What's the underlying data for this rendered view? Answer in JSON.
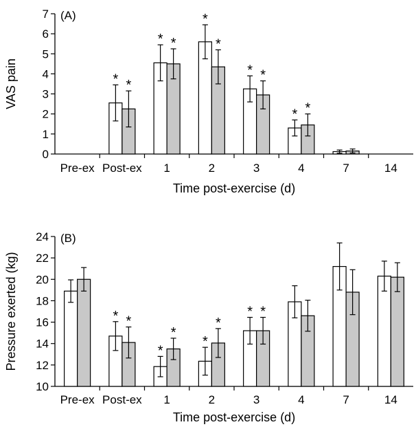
{
  "colors": {
    "series_1_fill": "#ffffff",
    "series_2_fill": "#c8c8c8",
    "stroke": "#000000"
  },
  "chart_data": [
    {
      "type": "bar",
      "panel_label": "(A)",
      "categories": [
        "Pre-ex",
        "Post-ex",
        "1",
        "2",
        "3",
        "4",
        "7",
        "14"
      ],
      "series": [
        {
          "values": [
            0,
            2.55,
            4.55,
            5.6,
            3.25,
            1.3,
            0.12,
            0
          ],
          "errors": [
            0,
            0.9,
            0.9,
            0.85,
            0.65,
            0.4,
            0.08,
            0
          ]
        },
        {
          "values": [
            0,
            2.25,
            4.5,
            4.35,
            2.95,
            1.45,
            0.15,
            0
          ],
          "errors": [
            0,
            0.9,
            0.75,
            0.85,
            0.7,
            0.55,
            0.1,
            0
          ]
        }
      ],
      "significance": [
        [
          false,
          true,
          true,
          true,
          true,
          true,
          false,
          false
        ],
        [
          false,
          true,
          true,
          true,
          true,
          true,
          false,
          false
        ]
      ],
      "significance_marker": "*",
      "xlabel": "Time post-exercise (d)",
      "ylabel": "VAS pain",
      "ylim": [
        0,
        7
      ],
      "yticks": [
        0,
        1,
        2,
        3,
        4,
        5,
        6,
        7
      ]
    },
    {
      "type": "bar",
      "panel_label": "(B)",
      "categories": [
        "Pre-ex",
        "Post-ex",
        "1",
        "2",
        "3",
        "4",
        "7",
        "14"
      ],
      "series": [
        {
          "values": [
            18.9,
            14.7,
            11.85,
            12.35,
            15.2,
            17.9,
            21.2,
            20.3
          ],
          "errors": [
            1.05,
            1.35,
            0.95,
            1.3,
            1.25,
            1.5,
            2.2,
            1.4
          ]
        },
        {
          "values": [
            20.0,
            14.1,
            13.5,
            14.05,
            15.2,
            16.6,
            18.8,
            20.2
          ],
          "errors": [
            1.1,
            1.45,
            1.0,
            1.35,
            1.25,
            1.45,
            2.1,
            1.35
          ]
        }
      ],
      "significance": [
        [
          false,
          true,
          true,
          true,
          true,
          false,
          false,
          false
        ],
        [
          false,
          true,
          true,
          true,
          true,
          false,
          false,
          false
        ]
      ],
      "significance_marker": "*",
      "xlabel": "Time post-exercise (d)",
      "ylabel": "Pressure exerted (kg)",
      "ylim": [
        10,
        24
      ],
      "yticks": [
        10,
        12,
        14,
        16,
        18,
        20,
        22,
        24
      ]
    }
  ]
}
